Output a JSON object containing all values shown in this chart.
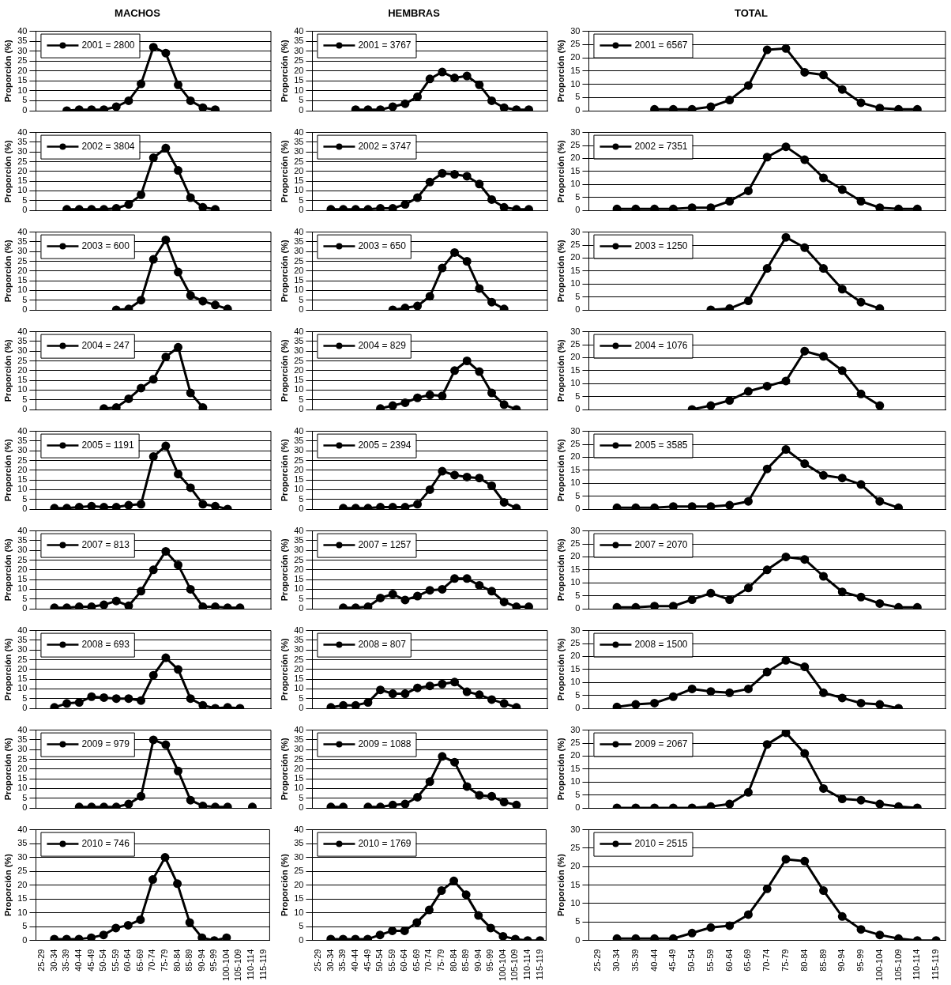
{
  "chart_data": [
    {
      "type": "line",
      "title": "MACHOS",
      "ylabel": "Proporción (%)",
      "categories": [
        null,
        null,
        null,
        null,
        null,
        null,
        null,
        null,
        null,
        null,
        null,
        null,
        null,
        null,
        null,
        null,
        null,
        null,
        null
      ],
      "ylim": [
        0,
        40
      ],
      "yticks": [
        0,
        5,
        10,
        15,
        20,
        25,
        30,
        35,
        40
      ],
      "grid": "y",
      "legend": "top left",
      "marker": "circle",
      "line_style": "solid",
      "tick_labels": "y",
      "series": [
        {
          "name": "2001 = 2800",
          "color": "#000000",
          "values": [
            null,
            null,
            0,
            0.5,
            0.5,
            0.5,
            2,
            5,
            13.5,
            32,
            29,
            13,
            5,
            1.5,
            0.5,
            null,
            null,
            null,
            null
          ]
        }
      ]
    },
    {
      "type": "line",
      "title": "HEMBRAS",
      "ylabel": "Proporción (%)",
      "categories": [
        null,
        null,
        null,
        null,
        null,
        null,
        null,
        null,
        null,
        null,
        null,
        null,
        null,
        null,
        null,
        null,
        null,
        null,
        null
      ],
      "ylim": [
        0,
        40
      ],
      "yticks": [
        0,
        5,
        10,
        15,
        20,
        25,
        30,
        35,
        40
      ],
      "grid": "y",
      "legend": "top left",
      "marker": "circle",
      "line_style": "solid",
      "tick_labels": "y",
      "series": [
        {
          "name": "2001 = 3767",
          "color": "#000000",
          "values": [
            null,
            null,
            null,
            0.5,
            0.5,
            0.5,
            2,
            3.5,
            7,
            16,
            19.5,
            16.5,
            17.5,
            13,
            5,
            1.5,
            0.5,
            0.5,
            null
          ]
        }
      ]
    },
    {
      "type": "line",
      "title": "TOTAL",
      "ylabel": "Proporción (%)",
      "categories": [
        null,
        null,
        null,
        null,
        null,
        null,
        null,
        null,
        null,
        null,
        null,
        null,
        null,
        null,
        null,
        null,
        null,
        null,
        null
      ],
      "ylim": [
        0,
        30
      ],
      "yticks": [
        0,
        5,
        10,
        15,
        20,
        25,
        30
      ],
      "grid": "y",
      "legend": "top left",
      "marker": "circle",
      "line_style": "solid",
      "tick_labels": "y",
      "series": [
        {
          "name": "2001 = 6567",
          "color": "#000000",
          "values": [
            null,
            null,
            null,
            0.5,
            0.5,
            0.5,
            1.5,
            4,
            9.5,
            23,
            23.5,
            14.5,
            13.5,
            8,
            3,
            1,
            0.5,
            0.5,
            null
          ]
        }
      ]
    },
    {
      "type": "line",
      "ylabel": "Proporción (%)",
      "categories": [
        null,
        null,
        null,
        null,
        null,
        null,
        null,
        null,
        null,
        null,
        null,
        null,
        null,
        null,
        null,
        null,
        null,
        null,
        null
      ],
      "ylim": [
        0,
        40
      ],
      "yticks": [
        0,
        5,
        10,
        15,
        20,
        25,
        30,
        35,
        40
      ],
      "grid": "y",
      "legend": "top left",
      "marker": "circle",
      "line_style": "solid",
      "tick_labels": "y",
      "series": [
        {
          "name": "2002 = 3804",
          "color": "#000000",
          "values": [
            null,
            null,
            0.5,
            0.5,
            0.5,
            0.5,
            1,
            3,
            8,
            27,
            32,
            20.5,
            6.5,
            1.5,
            0.5,
            null,
            null,
            null,
            null
          ]
        }
      ]
    },
    {
      "type": "line",
      "ylabel": "Proporción (%)",
      "categories": [
        null,
        null,
        null,
        null,
        null,
        null,
        null,
        null,
        null,
        null,
        null,
        null,
        null,
        null,
        null,
        null,
        null,
        null,
        null
      ],
      "ylim": [
        0,
        40
      ],
      "yticks": [
        0,
        5,
        10,
        15,
        20,
        25,
        30,
        35,
        40
      ],
      "grid": "y",
      "legend": "top left",
      "marker": "circle",
      "line_style": "solid",
      "tick_labels": "y",
      "series": [
        {
          "name": "2002 = 3747",
          "color": "#000000",
          "values": [
            null,
            0.5,
            0.5,
            0.5,
            0.5,
            1,
            1,
            3,
            6.5,
            14.5,
            19,
            18.5,
            17.5,
            13.5,
            5.5,
            1.5,
            0.5,
            0.5,
            null
          ]
        }
      ]
    },
    {
      "type": "line",
      "ylabel": "Proporción (%)",
      "categories": [
        null,
        null,
        null,
        null,
        null,
        null,
        null,
        null,
        null,
        null,
        null,
        null,
        null,
        null,
        null,
        null,
        null,
        null,
        null
      ],
      "ylim": [
        0,
        30
      ],
      "yticks": [
        0,
        5,
        10,
        15,
        20,
        25,
        30
      ],
      "grid": "y",
      "legend": "top left",
      "marker": "circle",
      "line_style": "solid",
      "tick_labels": "y",
      "series": [
        {
          "name": "2002 = 7351",
          "color": "#000000",
          "values": [
            null,
            0.5,
            0.5,
            0.5,
            0.5,
            1,
            1,
            3.5,
            7.5,
            20.5,
            24.5,
            19.5,
            12.5,
            8,
            3.5,
            1,
            0.5,
            0.5,
            null
          ]
        }
      ]
    },
    {
      "type": "line",
      "ylabel": "Proporción (%)",
      "categories": [
        null,
        null,
        null,
        null,
        null,
        null,
        null,
        null,
        null,
        null,
        null,
        null,
        null,
        null,
        null,
        null,
        null,
        null,
        null
      ],
      "ylim": [
        0,
        40
      ],
      "yticks": [
        0,
        5,
        10,
        15,
        20,
        25,
        30,
        35,
        40
      ],
      "grid": "y",
      "legend": "top left",
      "marker": "circle",
      "line_style": "solid",
      "tick_labels": "y",
      "series": [
        {
          "name": "2003 = 600",
          "color": "#000000",
          "values": [
            null,
            null,
            null,
            null,
            null,
            null,
            0,
            0.5,
            5,
            26,
            36,
            19.5,
            7.5,
            4.5,
            2.5,
            0.5,
            null,
            null,
            null
          ]
        }
      ]
    },
    {
      "type": "line",
      "ylabel": "Proporción (%)",
      "categories": [
        null,
        null,
        null,
        null,
        null,
        null,
        null,
        null,
        null,
        null,
        null,
        null,
        null,
        null,
        null,
        null,
        null,
        null,
        null
      ],
      "ylim": [
        0,
        40
      ],
      "yticks": [
        0,
        5,
        10,
        15,
        20,
        25,
        30,
        35,
        40
      ],
      "grid": "y",
      "legend": "top left",
      "marker": "circle",
      "line_style": "solid",
      "tick_labels": "y",
      "series": [
        {
          "name": "2003 = 650",
          "color": "#000000",
          "values": [
            null,
            null,
            null,
            null,
            null,
            null,
            0,
            1,
            2,
            7,
            21.5,
            29.5,
            25,
            11,
            4,
            0.5,
            null,
            null,
            null
          ]
        }
      ]
    },
    {
      "type": "line",
      "ylabel": "Proporción (%)",
      "categories": [
        null,
        null,
        null,
        null,
        null,
        null,
        null,
        null,
        null,
        null,
        null,
        null,
        null,
        null,
        null,
        null,
        null,
        null,
        null
      ],
      "ylim": [
        0,
        30
      ],
      "yticks": [
        0,
        5,
        10,
        15,
        20,
        25,
        30
      ],
      "grid": "y",
      "legend": "top left",
      "marker": "circle",
      "line_style": "solid",
      "tick_labels": "y",
      "series": [
        {
          "name": "2003 = 1250",
          "color": "#000000",
          "values": [
            null,
            null,
            null,
            null,
            null,
            null,
            0,
            0.5,
            3.5,
            16,
            28,
            24,
            16,
            8,
            3,
            0.5,
            null,
            null,
            null
          ]
        }
      ]
    },
    {
      "type": "line",
      "ylabel": "Proporción (%)",
      "categories": [
        null,
        null,
        null,
        null,
        null,
        null,
        null,
        null,
        null,
        null,
        null,
        null,
        null,
        null,
        null,
        null,
        null,
        null,
        null
      ],
      "ylim": [
        0,
        40
      ],
      "yticks": [
        0,
        5,
        10,
        15,
        20,
        25,
        30,
        35,
        40
      ],
      "grid": "y",
      "legend": "top left",
      "marker": "circle",
      "line_style": "solid",
      "tick_labels": "y",
      "series": [
        {
          "name": "2004 = 247",
          "color": "#000000",
          "values": [
            null,
            null,
            null,
            null,
            null,
            0.5,
            1,
            5.5,
            11,
            15.5,
            27,
            32,
            8.5,
            1,
            null,
            null,
            null,
            null,
            null
          ]
        }
      ]
    },
    {
      "type": "line",
      "ylabel": "Proporción (%)",
      "categories": [
        null,
        null,
        null,
        null,
        null,
        null,
        null,
        null,
        null,
        null,
        null,
        null,
        null,
        null,
        null,
        null,
        null,
        null,
        null
      ],
      "ylim": [
        0,
        40
      ],
      "yticks": [
        0,
        5,
        10,
        15,
        20,
        25,
        30,
        35,
        40
      ],
      "grid": "y",
      "legend": "top left",
      "marker": "circle",
      "line_style": "solid",
      "tick_labels": "y",
      "series": [
        {
          "name": "2004 = 829",
          "color": "#000000",
          "values": [
            null,
            null,
            null,
            null,
            null,
            0.5,
            2,
            3.5,
            6,
            7.5,
            7,
            20,
            25,
            19.5,
            8.5,
            2.5,
            0,
            null,
            null
          ]
        }
      ]
    },
    {
      "type": "line",
      "ylabel": "Proporción (%)",
      "categories": [
        null,
        null,
        null,
        null,
        null,
        null,
        null,
        null,
        null,
        null,
        null,
        null,
        null,
        null,
        null,
        null,
        null,
        null,
        null
      ],
      "ylim": [
        0,
        30
      ],
      "yticks": [
        0,
        5,
        10,
        15,
        20,
        25,
        30
      ],
      "grid": "y",
      "legend": "top left",
      "marker": "circle",
      "line_style": "solid",
      "tick_labels": "y",
      "series": [
        {
          "name": "2004 = 1076",
          "color": "#000000",
          "values": [
            null,
            null,
            null,
            null,
            null,
            0,
            1.5,
            3.5,
            7,
            9,
            11,
            22.5,
            20.5,
            15,
            6,
            1.5,
            null,
            null,
            null
          ]
        }
      ]
    },
    {
      "type": "line",
      "ylabel": "Proporción (%)",
      "categories": [
        null,
        null,
        null,
        null,
        null,
        null,
        null,
        null,
        null,
        null,
        null,
        null,
        null,
        null,
        null,
        null,
        null,
        null,
        null
      ],
      "ylim": [
        0,
        40
      ],
      "yticks": [
        0,
        5,
        10,
        15,
        20,
        25,
        30,
        35,
        40
      ],
      "grid": "y",
      "legend": "top left",
      "marker": "circle",
      "line_style": "solid",
      "tick_labels": "y",
      "series": [
        {
          "name": "2005 = 1191",
          "color": "#000000",
          "values": [
            null,
            0.5,
            0.5,
            1,
            1.5,
            1,
            1,
            2,
            2.5,
            27,
            32.5,
            18,
            11,
            2.5,
            1.5,
            0,
            null,
            null,
            null
          ]
        }
      ]
    },
    {
      "type": "line",
      "ylabel": "Proporción (%)",
      "categories": [
        null,
        null,
        null,
        null,
        null,
        null,
        null,
        null,
        null,
        null,
        null,
        null,
        null,
        null,
        null,
        null,
        null,
        null,
        null
      ],
      "ylim": [
        0,
        40
      ],
      "yticks": [
        0,
        5,
        10,
        15,
        20,
        25,
        30,
        35,
        40
      ],
      "grid": "y",
      "legend": "top left",
      "marker": "circle",
      "line_style": "solid",
      "tick_labels": "y",
      "series": [
        {
          "name": "2005 = 2394",
          "color": "#000000",
          "values": [
            null,
            null,
            0.5,
            0.5,
            0.5,
            1,
            1,
            1,
            2.5,
            10,
            19.5,
            17.5,
            16.5,
            16,
            12,
            3.5,
            0.5,
            null,
            null
          ]
        }
      ]
    },
    {
      "type": "line",
      "ylabel": "Proporción (%)",
      "categories": [
        null,
        null,
        null,
        null,
        null,
        null,
        null,
        null,
        null,
        null,
        null,
        null,
        null,
        null,
        null,
        null,
        null,
        null,
        null
      ],
      "ylim": [
        0,
        30
      ],
      "yticks": [
        0,
        5,
        10,
        15,
        20,
        25,
        30
      ],
      "grid": "y",
      "legend": "top left",
      "marker": "circle",
      "line_style": "solid",
      "tick_labels": "y",
      "series": [
        {
          "name": "2005 = 3585",
          "color": "#000000",
          "values": [
            null,
            0.5,
            0.5,
            0.5,
            1,
            1,
            1,
            1.5,
            3,
            15.5,
            23,
            17.5,
            13,
            12,
            9.5,
            3,
            0.5,
            null,
            null
          ]
        }
      ]
    },
    {
      "type": "line",
      "ylabel": "Proporción (%)",
      "categories": [
        null,
        null,
        null,
        null,
        null,
        null,
        null,
        null,
        null,
        null,
        null,
        null,
        null,
        null,
        null,
        null,
        null,
        null,
        null
      ],
      "ylim": [
        0,
        40
      ],
      "yticks": [
        0,
        5,
        10,
        15,
        20,
        25,
        30,
        35,
        40
      ],
      "grid": "y",
      "legend": "top left",
      "marker": "circle",
      "line_style": "solid",
      "tick_labels": "y",
      "series": [
        {
          "name": "2007 = 813",
          "color": "#000000",
          "values": [
            null,
            0.5,
            0.5,
            1,
            1,
            2,
            4,
            1.5,
            9,
            20,
            29.5,
            22.5,
            10,
            1,
            1,
            0.5,
            0.5,
            null,
            null
          ]
        }
      ]
    },
    {
      "type": "line",
      "ylabel": "Proporción (%)",
      "categories": [
        null,
        null,
        null,
        null,
        null,
        null,
        null,
        null,
        null,
        null,
        null,
        null,
        null,
        null,
        null,
        null,
        null,
        null,
        null
      ],
      "ylim": [
        0,
        40
      ],
      "yticks": [
        0,
        5,
        10,
        15,
        20,
        25,
        30,
        35,
        40
      ],
      "grid": "y",
      "legend": "top left",
      "marker": "circle",
      "line_style": "solid",
      "tick_labels": "y",
      "series": [
        {
          "name": "2007 = 1257",
          "color": "#000000",
          "values": [
            null,
            null,
            0.5,
            0.5,
            1,
            5.5,
            7.5,
            4.5,
            6.5,
            9.5,
            10,
            15.5,
            15.5,
            12,
            9,
            3.5,
            1,
            1,
            null
          ]
        }
      ]
    },
    {
      "type": "line",
      "ylabel": "Proporción (%)",
      "categories": [
        null,
        null,
        null,
        null,
        null,
        null,
        null,
        null,
        null,
        null,
        null,
        null,
        null,
        null,
        null,
        null,
        null,
        null,
        null
      ],
      "ylim": [
        0,
        30
      ],
      "yticks": [
        0,
        5,
        10,
        15,
        20,
        25,
        30
      ],
      "grid": "y",
      "legend": "top left",
      "marker": "circle",
      "line_style": "solid",
      "tick_labels": "y",
      "series": [
        {
          "name": "2007 = 2070",
          "color": "#000000",
          "values": [
            null,
            0.5,
            0.5,
            1,
            1,
            3.5,
            6,
            3.5,
            8,
            15,
            20,
            19,
            12.5,
            6.5,
            4.5,
            2,
            0.5,
            0.5,
            null
          ]
        }
      ]
    },
    {
      "type": "line",
      "ylabel": "Proporción (%)",
      "categories": [
        null,
        null,
        null,
        null,
        null,
        null,
        null,
        null,
        null,
        null,
        null,
        null,
        null,
        null,
        null,
        null,
        null,
        null,
        null
      ],
      "ylim": [
        0,
        40
      ],
      "yticks": [
        0,
        5,
        10,
        15,
        20,
        25,
        30,
        35,
        40
      ],
      "grid": "y",
      "legend": "top left",
      "marker": "circle",
      "line_style": "solid",
      "tick_labels": "y",
      "series": [
        {
          "name": "2008 = 693",
          "color": "#000000",
          "values": [
            null,
            0.5,
            2.5,
            3,
            6,
            5.5,
            5,
            5,
            4,
            17,
            26,
            20,
            5,
            1.5,
            0,
            0.5,
            0,
            null,
            null
          ]
        }
      ]
    },
    {
      "type": "line",
      "ylabel": "Proporción (%)",
      "categories": [
        null,
        null,
        null,
        null,
        null,
        null,
        null,
        null,
        null,
        null,
        null,
        null,
        null,
        null,
        null,
        null,
        null,
        null,
        null
      ],
      "ylim": [
        0,
        40
      ],
      "yticks": [
        0,
        5,
        10,
        15,
        20,
        25,
        30,
        35,
        40
      ],
      "grid": "y",
      "legend": "top left",
      "marker": "circle",
      "line_style": "solid",
      "tick_labels": "y",
      "series": [
        {
          "name": "2008 = 807",
          "color": "#000000",
          "values": [
            null,
            0.5,
            1.5,
            1.5,
            3,
            9.5,
            7.5,
            7.5,
            10.5,
            11.5,
            12.5,
            13.5,
            8.5,
            7,
            4.5,
            2.5,
            0.5,
            null,
            null
          ]
        }
      ]
    },
    {
      "type": "line",
      "ylabel": "Proporción (%)",
      "categories": [
        null,
        null,
        null,
        null,
        null,
        null,
        null,
        null,
        null,
        null,
        null,
        null,
        null,
        null,
        null,
        null,
        null,
        null,
        null
      ],
      "ylim": [
        0,
        30
      ],
      "yticks": [
        0,
        5,
        10,
        15,
        20,
        25,
        30
      ],
      "grid": "y",
      "legend": "top left",
      "marker": "circle",
      "line_style": "solid",
      "tick_labels": "y",
      "series": [
        {
          "name": "2008 = 1500",
          "color": "#000000",
          "values": [
            null,
            0.5,
            1.5,
            2,
            4.5,
            7.5,
            6.5,
            6,
            7.5,
            14,
            18.5,
            16,
            6,
            4,
            2,
            1.5,
            0,
            null,
            null
          ]
        }
      ]
    },
    {
      "type": "line",
      "ylabel": "Proporción (%)",
      "categories": [
        null,
        null,
        null,
        null,
        null,
        null,
        null,
        null,
        null,
        null,
        null,
        null,
        null,
        null,
        null,
        null,
        null,
        null,
        null
      ],
      "ylim": [
        0,
        40
      ],
      "yticks": [
        0,
        5,
        10,
        15,
        20,
        25,
        30,
        35,
        40
      ],
      "grid": "y",
      "legend": "top left",
      "marker": "circle",
      "line_style": "solid",
      "tick_labels": "y",
      "series": [
        {
          "name": "2009 = 979",
          "color": "#000000",
          "values": [
            null,
            null,
            null,
            0.5,
            0.5,
            0.5,
            0.5,
            2,
            6,
            35,
            32.5,
            19,
            4,
            1,
            0.5,
            0.5,
            null,
            0.5,
            null
          ]
        }
      ]
    },
    {
      "type": "line",
      "ylabel": "Proporción (%)",
      "categories": [
        null,
        null,
        null,
        null,
        null,
        null,
        null,
        null,
        null,
        null,
        null,
        null,
        null,
        null,
        null,
        null,
        null,
        null,
        null
      ],
      "ylim": [
        0,
        40
      ],
      "yticks": [
        0,
        5,
        10,
        15,
        20,
        25,
        30,
        35,
        40
      ],
      "grid": "y",
      "legend": "top left",
      "marker": "circle",
      "line_style": "solid",
      "tick_labels": "y",
      "series": [
        {
          "name": "2009 = 1088",
          "color": "#000000",
          "values": [
            null,
            0.5,
            0.5,
            null,
            0.5,
            0.5,
            1.5,
            2,
            5.5,
            13.5,
            26.5,
            23.5,
            11,
            6.5,
            6,
            3,
            1.5,
            null,
            null
          ]
        }
      ]
    },
    {
      "type": "line",
      "ylabel": "Proporción (%)",
      "categories": [
        null,
        null,
        null,
        null,
        null,
        null,
        null,
        null,
        null,
        null,
        null,
        null,
        null,
        null,
        null,
        null,
        null,
        null,
        null
      ],
      "ylim": [
        0,
        30
      ],
      "yticks": [
        0,
        5,
        10,
        15,
        20,
        25,
        30
      ],
      "grid": "y",
      "legend": "top left",
      "marker": "circle",
      "line_style": "solid",
      "tick_labels": "y",
      "series": [
        {
          "name": "2009 = 2067",
          "color": "#000000",
          "values": [
            null,
            0,
            0,
            0,
            0,
            0,
            0.5,
            1.5,
            6,
            24.5,
            29,
            21,
            7.5,
            3.5,
            3,
            1.5,
            0.5,
            0,
            null
          ]
        }
      ]
    },
    {
      "type": "line",
      "ylabel": "Proporción (%)",
      "categories": [
        "25-29",
        "30-34",
        "35-39",
        "40-44",
        "45-49",
        "50-54",
        "55-59",
        "60-64",
        "65-69",
        "70-74",
        "75-79",
        "80-84",
        "85-89",
        "90-94",
        "95-99",
        "100-104",
        "105-109",
        "110-114",
        "115-119"
      ],
      "ylim": [
        0,
        40
      ],
      "yticks": [
        0,
        5,
        10,
        15,
        20,
        25,
        30,
        35,
        40
      ],
      "grid": "y",
      "legend": "top left",
      "marker": "circle",
      "line_style": "solid",
      "series": [
        {
          "name": "2010 = 746",
          "color": "#000000",
          "values": [
            null,
            0.5,
            0.5,
            0.5,
            1,
            2,
            4.5,
            5.5,
            7.5,
            22,
            30,
            20.5,
            6.5,
            1,
            0,
            1,
            null,
            null,
            null
          ]
        }
      ]
    },
    {
      "type": "line",
      "ylabel": "Proporción (%)",
      "categories": [
        "25-29",
        "30-34",
        "35-39",
        "40-44",
        "45-49",
        "50-54",
        "55-59",
        "60-64",
        "65-69",
        "70-74",
        "75-79",
        "80-84",
        "85-89",
        "90-94",
        "95-99",
        "100-104",
        "105-109",
        "110-114",
        "115-119"
      ],
      "ylim": [
        0,
        40
      ],
      "yticks": [
        0,
        5,
        10,
        15,
        20,
        25,
        30,
        35,
        40
      ],
      "grid": "y",
      "legend": "top left",
      "marker": "circle",
      "line_style": "solid",
      "series": [
        {
          "name": "2010 = 1769",
          "color": "#000000",
          "values": [
            null,
            0.5,
            0.5,
            0.5,
            0.5,
            2,
            3.5,
            3.5,
            6.5,
            11,
            18,
            21.5,
            16.5,
            9,
            4.5,
            1.5,
            0.5,
            0,
            0
          ]
        }
      ]
    },
    {
      "type": "line",
      "ylabel": "Proporción (%)",
      "categories": [
        "25-29",
        "30-34",
        "35-39",
        "40-44",
        "45-49",
        "50-54",
        "55-59",
        "60-64",
        "65-69",
        "70-74",
        "75-79",
        "80-84",
        "85-89",
        "90-94",
        "95-99",
        "100-104",
        "105-109",
        "110-114",
        "115-119"
      ],
      "ylim": [
        0,
        30
      ],
      "yticks": [
        0,
        5,
        10,
        15,
        20,
        25,
        30
      ],
      "grid": "y",
      "legend": "top left",
      "marker": "circle",
      "line_style": "solid",
      "series": [
        {
          "name": "2010 = 2515",
          "color": "#000000",
          "values": [
            null,
            0.5,
            0.5,
            0.5,
            0.5,
            2,
            3.5,
            4,
            7,
            14,
            22,
            21.5,
            13.5,
            6.5,
            3,
            1.5,
            0.5,
            0,
            0
          ]
        }
      ]
    }
  ]
}
